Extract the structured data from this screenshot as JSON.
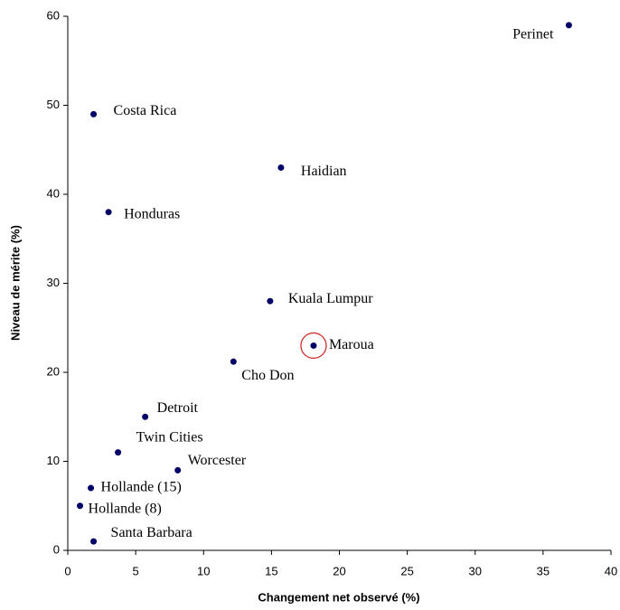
{
  "chart_data": {
    "type": "scatter",
    "xlabel": "Changement net observé  (%)",
    "ylabel": "Niveau de mérite (%)",
    "xlim": [
      0,
      40
    ],
    "xticks": [
      0,
      5,
      10,
      15,
      20,
      25,
      30,
      35,
      40
    ],
    "ylim": [
      0,
      60
    ],
    "yticks": [
      0,
      10,
      20,
      30,
      40,
      50,
      60
    ],
    "grid": false,
    "series": [
      {
        "color": "#000066",
        "labels": [
          "Perinet",
          "Costa Rica",
          "Haidian",
          "Honduras",
          "Kuala Lumpur",
          "Maroua",
          "Cho Don",
          "Detroit",
          "Twin Cities",
          "Worcester",
          "Hollande (15)",
          "Hollande (8)",
          "Santa Barbara"
        ],
        "x": [
          36.9,
          1.9,
          15.7,
          3.0,
          14.9,
          18.1,
          12.2,
          5.7,
          3.7,
          8.1,
          1.7,
          0.9,
          1.9
        ],
        "values": [
          59,
          49,
          43,
          38,
          28,
          23,
          21.2,
          15,
          11,
          9,
          7,
          5,
          1
        ]
      }
    ]
  }
}
